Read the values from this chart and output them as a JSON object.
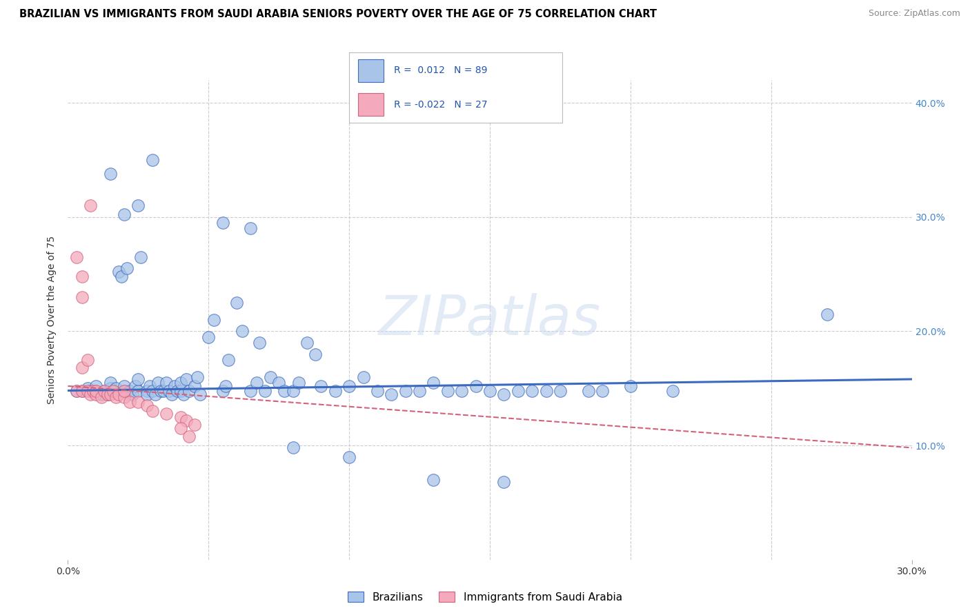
{
  "title": "BRAZILIAN VS IMMIGRANTS FROM SAUDI ARABIA SENIORS POVERTY OVER THE AGE OF 75 CORRELATION CHART",
  "source": "Source: ZipAtlas.com",
  "ylabel": "Seniors Poverty Over the Age of 75",
  "xlim": [
    0.0,
    0.3
  ],
  "ylim": [
    0.0,
    0.42
  ],
  "grid_color": "#cccccc",
  "watermark": "ZIPatlas",
  "blue_color": "#a8c4e8",
  "pink_color": "#f4aabc",
  "trendline_blue": "#3c6abf",
  "trendline_pink": "#d4607a",
  "trendline_blue_y0": 0.148,
  "trendline_blue_y1": 0.158,
  "trendline_pink_y0": 0.152,
  "trendline_pink_y1": 0.098,
  "blue_scatter": [
    [
      0.003,
      0.148
    ],
    [
      0.005,
      0.148
    ],
    [
      0.007,
      0.15
    ],
    [
      0.008,
      0.148
    ],
    [
      0.01,
      0.148
    ],
    [
      0.01,
      0.152
    ],
    [
      0.012,
      0.145
    ],
    [
      0.013,
      0.148
    ],
    [
      0.014,
      0.145
    ],
    [
      0.015,
      0.15
    ],
    [
      0.015,
      0.155
    ],
    [
      0.016,
      0.148
    ],
    [
      0.017,
      0.15
    ],
    [
      0.018,
      0.252
    ],
    [
      0.019,
      0.248
    ],
    [
      0.02,
      0.148
    ],
    [
      0.02,
      0.152
    ],
    [
      0.021,
      0.255
    ],
    [
      0.022,
      0.148
    ],
    [
      0.023,
      0.145
    ],
    [
      0.024,
      0.152
    ],
    [
      0.025,
      0.148
    ],
    [
      0.025,
      0.158
    ],
    [
      0.026,
      0.265
    ],
    [
      0.028,
      0.148
    ],
    [
      0.028,
      0.145
    ],
    [
      0.029,
      0.152
    ],
    [
      0.03,
      0.148
    ],
    [
      0.031,
      0.145
    ],
    [
      0.032,
      0.155
    ],
    [
      0.033,
      0.148
    ],
    [
      0.034,
      0.148
    ],
    [
      0.035,
      0.155
    ],
    [
      0.036,
      0.148
    ],
    [
      0.037,
      0.145
    ],
    [
      0.038,
      0.152
    ],
    [
      0.039,
      0.148
    ],
    [
      0.04,
      0.148
    ],
    [
      0.04,
      0.155
    ],
    [
      0.041,
      0.145
    ],
    [
      0.042,
      0.158
    ],
    [
      0.043,
      0.148
    ],
    [
      0.045,
      0.152
    ],
    [
      0.046,
      0.16
    ],
    [
      0.047,
      0.145
    ],
    [
      0.05,
      0.195
    ],
    [
      0.052,
      0.21
    ],
    [
      0.055,
      0.148
    ],
    [
      0.056,
      0.152
    ],
    [
      0.057,
      0.175
    ],
    [
      0.06,
      0.225
    ],
    [
      0.062,
      0.2
    ],
    [
      0.065,
      0.148
    ],
    [
      0.067,
      0.155
    ],
    [
      0.068,
      0.19
    ],
    [
      0.07,
      0.148
    ],
    [
      0.072,
      0.16
    ],
    [
      0.075,
      0.155
    ],
    [
      0.077,
      0.148
    ],
    [
      0.08,
      0.148
    ],
    [
      0.082,
      0.155
    ],
    [
      0.085,
      0.19
    ],
    [
      0.088,
      0.18
    ],
    [
      0.09,
      0.152
    ],
    [
      0.095,
      0.148
    ],
    [
      0.1,
      0.152
    ],
    [
      0.105,
      0.16
    ],
    [
      0.11,
      0.148
    ],
    [
      0.115,
      0.145
    ],
    [
      0.12,
      0.148
    ],
    [
      0.125,
      0.148
    ],
    [
      0.13,
      0.155
    ],
    [
      0.135,
      0.148
    ],
    [
      0.14,
      0.148
    ],
    [
      0.145,
      0.152
    ],
    [
      0.15,
      0.148
    ],
    [
      0.155,
      0.145
    ],
    [
      0.16,
      0.148
    ],
    [
      0.165,
      0.148
    ],
    [
      0.17,
      0.148
    ],
    [
      0.175,
      0.148
    ],
    [
      0.185,
      0.148
    ],
    [
      0.19,
      0.148
    ],
    [
      0.2,
      0.152
    ],
    [
      0.215,
      0.148
    ],
    [
      0.27,
      0.215
    ],
    [
      0.03,
      0.35
    ],
    [
      0.015,
      0.338
    ],
    [
      0.025,
      0.31
    ],
    [
      0.02,
      0.302
    ],
    [
      0.055,
      0.295
    ],
    [
      0.065,
      0.29
    ],
    [
      0.08,
      0.098
    ],
    [
      0.1,
      0.09
    ],
    [
      0.13,
      0.07
    ],
    [
      0.155,
      0.068
    ]
  ],
  "pink_scatter": [
    [
      0.003,
      0.148
    ],
    [
      0.005,
      0.148
    ],
    [
      0.007,
      0.148
    ],
    [
      0.008,
      0.145
    ],
    [
      0.009,
      0.148
    ],
    [
      0.01,
      0.145
    ],
    [
      0.01,
      0.148
    ],
    [
      0.012,
      0.142
    ],
    [
      0.013,
      0.148
    ],
    [
      0.014,
      0.145
    ],
    [
      0.015,
      0.145
    ],
    [
      0.016,
      0.148
    ],
    [
      0.017,
      0.142
    ],
    [
      0.018,
      0.145
    ],
    [
      0.02,
      0.142
    ],
    [
      0.02,
      0.148
    ],
    [
      0.022,
      0.138
    ],
    [
      0.025,
      0.138
    ],
    [
      0.028,
      0.135
    ],
    [
      0.03,
      0.13
    ],
    [
      0.035,
      0.128
    ],
    [
      0.04,
      0.125
    ],
    [
      0.042,
      0.122
    ],
    [
      0.045,
      0.118
    ],
    [
      0.003,
      0.265
    ],
    [
      0.005,
      0.248
    ],
    [
      0.008,
      0.31
    ],
    [
      0.005,
      0.168
    ],
    [
      0.007,
      0.175
    ],
    [
      0.04,
      0.115
    ],
    [
      0.043,
      0.108
    ],
    [
      0.005,
      0.23
    ]
  ]
}
